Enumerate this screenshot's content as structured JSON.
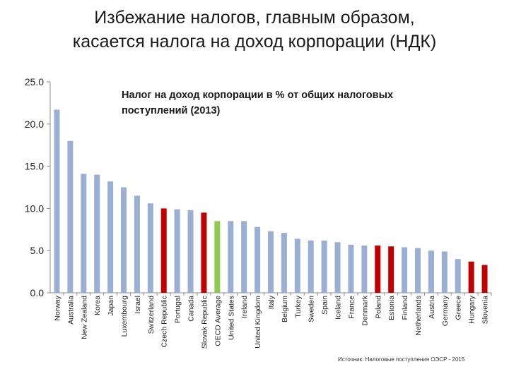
{
  "header": {
    "title_line1": "Избежание налогов, главным образом,",
    "title_line2": "касается налога на доход корпорации (НДК)"
  },
  "source": "Источник: Налоговые поступления ОЭСР - 2015",
  "colors": {
    "default": "#9bafd4",
    "highlight": "#c00000",
    "average": "#8ec950"
  },
  "chart_data": {
    "type": "bar",
    "title": "Налог на доход корпорации в % от общих налоговых поступлений (2013)",
    "xlabel": "",
    "ylabel": "",
    "ylim": [
      0,
      25
    ],
    "yticks": [
      "0.0",
      "5.0",
      "10.0",
      "15.0",
      "20.0",
      "25.0"
    ],
    "grid": false,
    "categories": [
      "Norway",
      "Australia",
      "New Zealand",
      "Korea",
      "Japan",
      "Luxembourg",
      "Israel",
      "Switzerland",
      "Czech Republic",
      "Portugal",
      "Canada",
      "Slovak Republic",
      "OECD Average",
      "United States",
      "Ireland",
      "United Kingdom",
      "Italy",
      "Belgium",
      "Turkey",
      "Sweden",
      "Spain",
      "Iceland",
      "France",
      "Denmark",
      "Poland",
      "Estonia",
      "Finland",
      "Netherlands",
      "Austria",
      "Germany",
      "Greece",
      "Hungary",
      "Slovenia"
    ],
    "values": [
      21.7,
      18.0,
      14.1,
      14.0,
      13.2,
      12.5,
      11.5,
      10.6,
      10.0,
      9.9,
      9.8,
      9.5,
      8.5,
      8.5,
      8.5,
      7.8,
      7.3,
      7.1,
      6.4,
      6.2,
      6.2,
      6.0,
      5.7,
      5.6,
      5.6,
      5.5,
      5.4,
      5.3,
      5.0,
      4.9,
      4.0,
      3.7,
      3.3
    ],
    "bar_colors": [
      "default",
      "default",
      "default",
      "default",
      "default",
      "default",
      "default",
      "default",
      "highlight",
      "default",
      "default",
      "highlight",
      "average",
      "default",
      "default",
      "default",
      "default",
      "default",
      "default",
      "default",
      "default",
      "default",
      "default",
      "default",
      "highlight",
      "highlight",
      "default",
      "default",
      "default",
      "default",
      "default",
      "highlight",
      "highlight"
    ]
  }
}
